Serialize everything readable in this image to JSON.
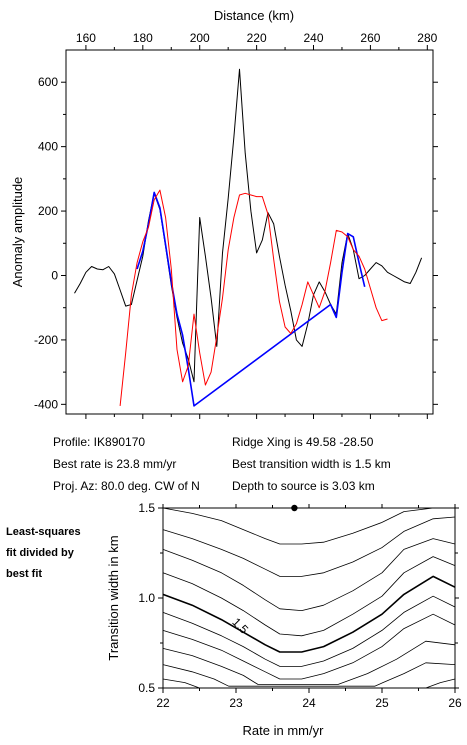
{
  "chart_data": [
    {
      "type": "line",
      "xlabel": "Distance (km)",
      "ylabel": "Anomaly amplitude",
      "xlim": [
        153,
        282
      ],
      "ylim": [
        -430,
        700
      ],
      "x_ticks": [
        160,
        180,
        200,
        220,
        240,
        260,
        280
      ],
      "y_ticks": [
        -400,
        -200,
        0,
        200,
        400,
        600
      ],
      "x_tick_labels": [
        "160",
        "180",
        "200",
        "220",
        "240",
        "260",
        "280"
      ],
      "y_tick_labels": [
        "-400",
        "-200",
        "0",
        "200",
        "400",
        "600"
      ],
      "grid": false,
      "series": [
        {
          "color": "#000000",
          "x": [
            156,
            158,
            160,
            162,
            164,
            166,
            168,
            170,
            172,
            174,
            176,
            178,
            180,
            182,
            184,
            186,
            188,
            190,
            192,
            194,
            196,
            198,
            200,
            202,
            204,
            206,
            208,
            210,
            212,
            214,
            216,
            218,
            220,
            222,
            224,
            226,
            228,
            230,
            232,
            234,
            236,
            238,
            240,
            242,
            244,
            246,
            248,
            250,
            252,
            254,
            256,
            258,
            260,
            262,
            264,
            266,
            268,
            270,
            272,
            274,
            276,
            278
          ],
          "y": [
            -55,
            -25,
            10,
            28,
            20,
            18,
            28,
            5,
            -45,
            -95,
            -90,
            -15,
            60,
            170,
            255,
            205,
            90,
            -30,
            -130,
            -210,
            -260,
            -330,
            180,
            60,
            -70,
            -220,
            70,
            240,
            430,
            640,
            380,
            200,
            70,
            110,
            195,
            160,
            60,
            -30,
            -110,
            -200,
            -220,
            -150,
            -60,
            -20,
            -50,
            -90,
            -120,
            40,
            130,
            80,
            -10,
            0,
            20,
            40,
            30,
            10,
            0,
            -10,
            -20,
            -25,
            10,
            55
          ]
        },
        {
          "color": "#0000ff",
          "x": [
            178,
            180,
            182,
            184,
            186,
            188,
            190,
            192,
            194,
            196,
            198,
            246,
            248,
            250,
            252,
            254,
            256,
            258
          ],
          "y": [
            20,
            75,
            160,
            258,
            210,
            95,
            -20,
            -120,
            -185,
            -290,
            -405,
            -90,
            -130,
            10,
            130,
            120,
            40,
            -35
          ]
        },
        {
          "color": "#ff0000",
          "x": [
            172,
            174,
            176,
            178,
            180,
            182,
            184,
            186,
            188,
            190,
            192,
            194,
            196,
            198,
            200,
            202,
            204,
            206,
            208,
            210,
            212,
            214,
            216,
            218,
            220,
            222,
            224,
            226,
            228,
            230,
            232,
            234,
            236,
            238,
            240,
            242,
            244,
            246,
            248,
            250,
            252,
            254,
            256,
            258,
            260,
            262,
            264,
            266
          ],
          "y": [
            -405,
            -240,
            -60,
            40,
            105,
            150,
            235,
            265,
            180,
            20,
            -230,
            -330,
            -280,
            -120,
            -240,
            -340,
            -300,
            -190,
            -70,
            80,
            180,
            250,
            255,
            250,
            245,
            245,
            190,
            50,
            -80,
            -160,
            -180,
            -150,
            -90,
            -20,
            -60,
            -100,
            -50,
            40,
            140,
            135,
            120,
            80,
            60,
            20,
            -40,
            -100,
            -140,
            -135
          ]
        }
      ]
    },
    {
      "type": "heatmap",
      "xlabel": "Rate in mm/yr",
      "ylabel": "Transition width in km",
      "xlim": [
        22,
        26
      ],
      "ylim": [
        0.5,
        1.5
      ],
      "x_ticks": [
        22,
        23,
        24,
        25,
        26
      ],
      "y_ticks": [
        0.5,
        1.0,
        1.5
      ],
      "x_tick_labels": [
        "22",
        "23",
        "24",
        "25",
        "26"
      ],
      "y_tick_labels": [
        "0.5",
        "1.0",
        "1.5"
      ],
      "grid": false,
      "best_fit_point": [
        23.8,
        1.5
      ],
      "contour_label": "1.5",
      "contours": [
        {
          "level": "a",
          "x": [
            22.0,
            22.4,
            22.8,
            23.1,
            23.4,
            23.6,
            23.9,
            24.2,
            24.6,
            25.0,
            25.3,
            25.7,
            26.0
          ],
          "y": [
            1.5,
            1.47,
            1.43,
            1.38,
            1.33,
            1.3,
            1.3,
            1.31,
            1.36,
            1.42,
            1.48,
            1.5,
            1.5
          ]
        },
        {
          "level": "b",
          "x": [
            22.0,
            22.4,
            22.8,
            23.1,
            23.4,
            23.6,
            23.9,
            24.2,
            24.6,
            25.0,
            25.3,
            25.7,
            26.0
          ],
          "y": [
            1.38,
            1.33,
            1.27,
            1.22,
            1.16,
            1.12,
            1.12,
            1.14,
            1.2,
            1.28,
            1.37,
            1.44,
            1.45
          ]
        },
        {
          "level": "c",
          "x": [
            22.0,
            22.4,
            22.8,
            23.1,
            23.4,
            23.6,
            23.9,
            24.2,
            24.6,
            25.0,
            25.3,
            25.7,
            26.0
          ],
          "y": [
            1.27,
            1.21,
            1.14,
            1.07,
            0.99,
            0.94,
            0.93,
            0.96,
            1.04,
            1.14,
            1.27,
            1.33,
            1.3
          ]
        },
        {
          "level": "d",
          "x": [
            22.0,
            22.4,
            22.8,
            23.1,
            23.4,
            23.6,
            23.9,
            24.2,
            24.6,
            25.0,
            25.3,
            25.7,
            26.0
          ],
          "y": [
            1.14,
            1.08,
            1.0,
            0.93,
            0.85,
            0.8,
            0.79,
            0.82,
            0.91,
            1.01,
            1.14,
            1.23,
            1.18
          ]
        },
        {
          "level": "e",
          "x": [
            22.0,
            22.4,
            22.8,
            23.1,
            23.4,
            23.6,
            23.9,
            24.2,
            24.6,
            25.0,
            25.3,
            25.7,
            26.0
          ],
          "y": [
            1.02,
            0.96,
            0.88,
            0.81,
            0.74,
            0.7,
            0.7,
            0.73,
            0.81,
            0.91,
            1.02,
            1.12,
            1.06
          ]
        },
        {
          "level": "f",
          "x": [
            22.0,
            22.4,
            22.8,
            23.1,
            23.4,
            23.6,
            23.9,
            24.2,
            24.6,
            25.0,
            25.3,
            25.7,
            26.0
          ],
          "y": [
            0.92,
            0.86,
            0.79,
            0.73,
            0.66,
            0.62,
            0.62,
            0.65,
            0.72,
            0.82,
            0.92,
            1.01,
            0.95
          ]
        },
        {
          "level": "g",
          "x": [
            22.0,
            22.4,
            22.8,
            23.1,
            23.4,
            23.6,
            23.9,
            24.2,
            24.6,
            25.0,
            25.3,
            25.7,
            26.0
          ],
          "y": [
            0.82,
            0.77,
            0.71,
            0.65,
            0.59,
            0.55,
            0.55,
            0.58,
            0.64,
            0.73,
            0.83,
            0.91,
            0.85
          ]
        },
        {
          "level": "h",
          "x": [
            22.0,
            22.4,
            22.8,
            23.1,
            23.3,
            24.4,
            24.8,
            25.2,
            25.6,
            26.0
          ],
          "y": [
            0.72,
            0.68,
            0.62,
            0.57,
            0.52,
            0.52,
            0.58,
            0.66,
            0.76,
            0.74
          ]
        },
        {
          "level": "i",
          "x": [
            22.0,
            22.4,
            22.7,
            22.9,
            24.9,
            25.3,
            25.6,
            26.0
          ],
          "y": [
            0.63,
            0.59,
            0.55,
            0.51,
            0.51,
            0.58,
            0.64,
            0.63
          ]
        },
        {
          "level": "j",
          "x": [
            22.0,
            22.3,
            22.5,
            25.6,
            25.8,
            26.0
          ],
          "y": [
            0.55,
            0.53,
            0.5,
            0.5,
            0.53,
            0.55
          ]
        }
      ]
    }
  ],
  "info": {
    "profile": "Profile: IK890170",
    "best_rate": "Best rate is 23.8 mm/yr",
    "proj_az": "Proj. Az: 80.0 deg. CW of N",
    "ridge_xing": "Ridge Xing is 49.58 -28.50",
    "best_width": "Best transition width is 1.5 km",
    "depth": "Depth to source is    3.03 km"
  },
  "side_label": [
    "Least-squares",
    "fit divided by",
    "best fit"
  ]
}
